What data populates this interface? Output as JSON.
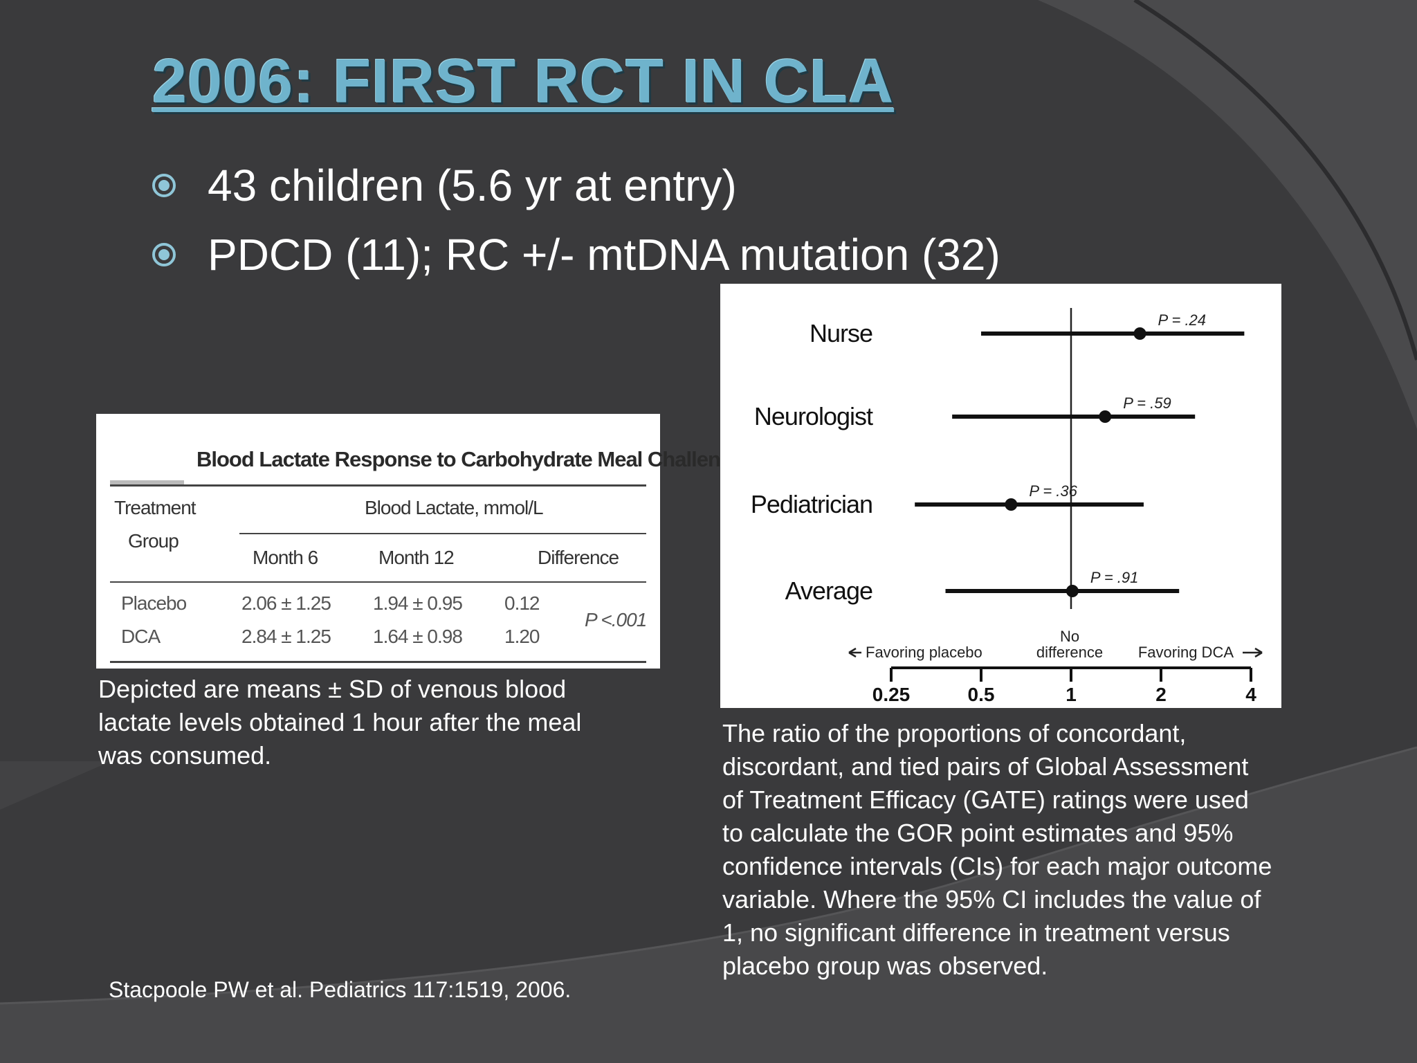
{
  "slide": {
    "title": "2006:  FIRST RCT IN CLA",
    "bullets": [
      "43 children (5.6 yr at entry)",
      "PDCD (11); RC +/- mtDNA mutation (32)"
    ],
    "colors": {
      "title": "#6fb3cc",
      "background": "#3a3a3c",
      "bullet": "#8fc6d8"
    }
  },
  "table": {
    "title": "Blood Lactate Response to Carbohydrate Meal Challenge",
    "row_header": [
      "Treatment",
      "Group"
    ],
    "group_header": "Blood Lactate, mmol/L",
    "columns": [
      "Month 6",
      "Month 12",
      "Difference"
    ],
    "rows": [
      {
        "group": "Placebo",
        "month6": "2.06 ± 1.25",
        "month12": "1.94 ± 0.95",
        "difference": "0.12"
      },
      {
        "group": "DCA",
        "month6": "2.84 ± 1.25",
        "month12": "1.64 ± 0.98",
        "difference": "1.20"
      }
    ],
    "p_value": "P <.001"
  },
  "table_caption": "Depicted are means ± SD of venous blood lactate levels obtained 1 hour after the meal was consumed.",
  "chart_data": {
    "type": "forest",
    "xscale": "log",
    "xlim": [
      0.25,
      4
    ],
    "xticks": [
      "0.25",
      "0.5",
      "1",
      "2",
      "4"
    ],
    "reference_line": 1,
    "left_label": "Favoring placebo",
    "center_label_lines": [
      "No",
      "difference"
    ],
    "right_label": "Favoring DCA",
    "series": [
      {
        "name": "Nurse",
        "estimate": 1.7,
        "ci": [
          0.5,
          3.8
        ],
        "p_label": "P = .24"
      },
      {
        "name": "Neurologist",
        "estimate": 1.3,
        "ci": [
          0.4,
          2.6
        ],
        "p_label": "P = .59"
      },
      {
        "name": "Pediatrician",
        "estimate": 0.63,
        "ci": [
          0.3,
          1.75
        ],
        "p_label": "P = .36"
      },
      {
        "name": "Average",
        "estimate": 1.01,
        "ci": [
          0.38,
          2.3
        ],
        "p_label": "P = .91"
      }
    ]
  },
  "chart_caption": "The ratio of the proportions of concordant, discordant, and tied pairs of Global Assessment of Treatment Efficacy (GATE) ratings were used to calculate the GOR point estimates and 95% confidence intervals (CIs) for each major outcome variable.  Where the 95% CI includes the value of 1, no significant difference in treatment versus placebo group was observed.",
  "citation": "Stacpoole PW et al.  Pediatrics 117:1519, 2006."
}
